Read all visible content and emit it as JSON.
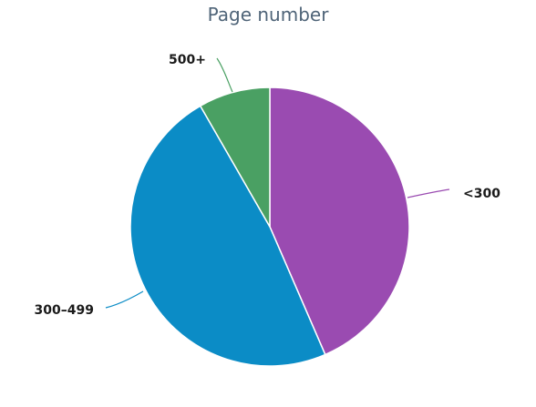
{
  "chart_data": {
    "type": "pie",
    "title": "Page number",
    "slices": [
      {
        "label": "<300",
        "value": 43.5,
        "color": "#9a4bb1"
      },
      {
        "label": "300–499",
        "value": 48.2,
        "color": "#0b8cc6"
      },
      {
        "label": "500+",
        "value": 8.3,
        "color": "#4aa063"
      }
    ],
    "start": "12 o'clock",
    "direction": "clockwise",
    "legend": "none"
  }
}
